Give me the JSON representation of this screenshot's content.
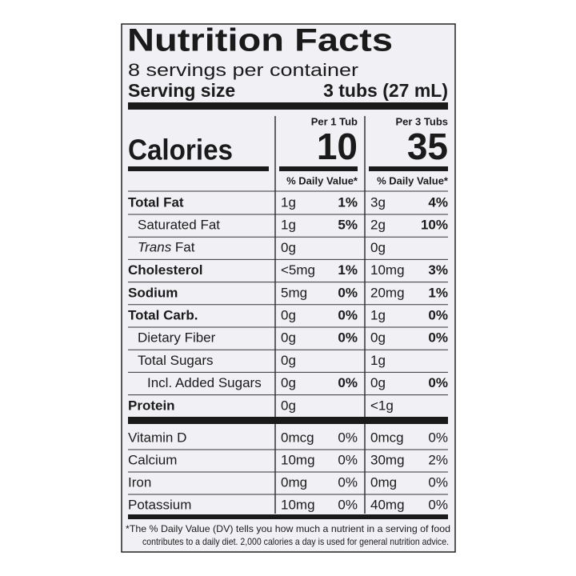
{
  "title": "Nutrition Facts",
  "servings": "8 servings per container",
  "serving_size": {
    "label": "Serving size",
    "value": "3 tubs (27 mL)"
  },
  "calories": {
    "label": "Calories",
    "columns": [
      {
        "header": "Per 1 Tub",
        "value": 10
      },
      {
        "header": "Per 3 Tubs",
        "value": 35
      }
    ]
  },
  "dv_header": [
    "% Daily Value*",
    "% Daily Value*"
  ],
  "nutrients": [
    {
      "name": "Total Fat",
      "bold": true,
      "indent": 0,
      "amounts": [
        "1g",
        "3g"
      ],
      "dv": [
        "1%",
        "4%"
      ]
    },
    {
      "name": "Saturated Fat",
      "bold": false,
      "indent": 1,
      "amounts": [
        "1g",
        "2g"
      ],
      "dv": [
        "5%",
        "10%"
      ]
    },
    {
      "name_italic": "Trans",
      "name": " Fat",
      "bold": false,
      "indent": 1,
      "amounts": [
        "0g",
        "0g"
      ],
      "dv": [
        null,
        null
      ]
    },
    {
      "name": "Cholesterol",
      "bold": true,
      "indent": 0,
      "amounts": [
        "<5mg",
        "10mg"
      ],
      "dv": [
        "1%",
        "3%"
      ]
    },
    {
      "name": "Sodium",
      "bold": true,
      "indent": 0,
      "amounts": [
        "5mg",
        "20mg"
      ],
      "dv": [
        "0%",
        "1%"
      ]
    },
    {
      "name": "Total Carb.",
      "bold": true,
      "indent": 0,
      "amounts": [
        "0g",
        "1g"
      ],
      "dv": [
        "0%",
        "0%"
      ]
    },
    {
      "name": "Dietary Fiber",
      "bold": false,
      "indent": 1,
      "amounts": [
        "0g",
        "0g"
      ],
      "dv": [
        "0%",
        "0%"
      ]
    },
    {
      "name": "Total Sugars",
      "bold": false,
      "indent": 1,
      "amounts": [
        "0g",
        "1g"
      ],
      "dv": [
        null,
        null
      ]
    },
    {
      "name": "Incl. Added Sugars",
      "bold": false,
      "indent": 2,
      "amounts": [
        "0g",
        "0g"
      ],
      "dv": [
        "0%",
        "0%"
      ]
    },
    {
      "name": "Protein",
      "bold": true,
      "indent": 0,
      "amounts": [
        "0g",
        "<1g"
      ],
      "dv": [
        null,
        null
      ]
    }
  ],
  "vitamins": [
    {
      "name": "Vitamin D",
      "amounts": [
        "0mcg",
        "0mcg"
      ],
      "dv": [
        "0%",
        "0%"
      ]
    },
    {
      "name": "Calcium",
      "amounts": [
        "10mg",
        "30mg"
      ],
      "dv": [
        "0%",
        "2%"
      ]
    },
    {
      "name": "Iron",
      "amounts": [
        "0mg",
        "0mg"
      ],
      "dv": [
        "0%",
        "0%"
      ]
    },
    {
      "name": "Potassium",
      "amounts": [
        "10mg",
        "40mg"
      ],
      "dv": [
        "0%",
        "0%"
      ]
    }
  ],
  "footnote": [
    "*The % Daily Value (DV) tells you how much a nutrient in a serving of food",
    "contributes to a daily diet. 2,000 calories a day is used for general nutrition advice."
  ]
}
